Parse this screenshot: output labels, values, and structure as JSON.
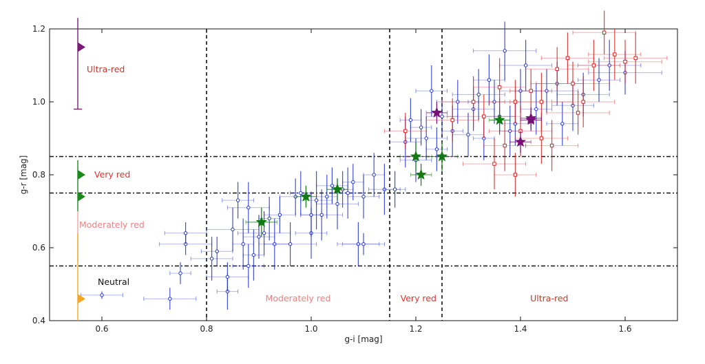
{
  "chart_data": {
    "type": "scatter",
    "xlabel": "g-i [mag]",
    "ylabel": "g-r [mag]",
    "xlim": [
      0.5,
      1.7
    ],
    "ylim": [
      0.4,
      1.2
    ],
    "x_ticks": [
      "0.6",
      "0.8",
      "1.0",
      "1.2",
      "1.4",
      "1.6"
    ],
    "y_ticks": [
      "0.4",
      "0.6",
      "0.8",
      "1.0",
      "1.2"
    ],
    "grid": false,
    "vertical_lines": [
      0.8,
      1.15,
      1.25
    ],
    "horizontal_lines": [
      0.55,
      0.75,
      0.85
    ],
    "colors": {
      "blue_series": "#2233cc",
      "red_series": "#dd2222",
      "green_stars": "#117a11",
      "purple_stars": "#771177",
      "ultra_red_marker": "#7a1a7a",
      "very_red_marker": "#1a8a1a",
      "moderately_red_bar": "#f4a3a3",
      "neutral_marker": "#f5a623"
    },
    "left_scale": [
      {
        "label": "Ultra-red",
        "marker_y": 1.15,
        "bar": [
          0.98,
          1.23
        ],
        "color": "#7a1a7a",
        "label_color": "#c0392b"
      },
      {
        "label": "Very red",
        "marker_y": 0.8,
        "second_marker_y": 0.74,
        "bar": [
          0.7,
          0.84
        ],
        "color": "#1a8a1a",
        "label_color": "#e03030"
      },
      {
        "label": "Moderately red",
        "bar": [
          0.56,
          0.7
        ],
        "color": "#f4a3a3",
        "label_color": "#f08080"
      },
      {
        "label": "Neutral",
        "marker_y": 0.46,
        "bar": [
          0.4,
          0.64
        ],
        "color": "#f5a623",
        "label_color": "#111111"
      }
    ],
    "bottom_labels": [
      {
        "label": "Moderately red",
        "x": 0.975,
        "y": 0.46,
        "color": "#f08080"
      },
      {
        "label": "Very red",
        "x": 1.205,
        "y": 0.46,
        "color": "#e03030"
      },
      {
        "label": "Ultra-red",
        "x": 1.455,
        "y": 0.46,
        "color": "#c0392b"
      }
    ],
    "series": [
      {
        "marker": "circle",
        "color": "#2233cc",
        "points": [
          [
            0.6,
            0.47,
            0.04,
            0.01
          ],
          [
            0.73,
            0.46,
            0.05,
            0.03
          ],
          [
            0.75,
            0.53,
            0.02,
            0.03
          ],
          [
            0.76,
            0.61,
            0.05,
            0.03
          ],
          [
            0.76,
            0.64,
            0.04,
            0.03
          ],
          [
            0.81,
            0.57,
            0.04,
            0.06
          ],
          [
            0.82,
            0.59,
            0.03,
            0.04
          ],
          [
            0.84,
            0.48,
            0.02,
            0.05
          ],
          [
            0.84,
            0.52,
            0.04,
            0.04
          ],
          [
            0.85,
            0.65,
            0.05,
            0.06
          ],
          [
            0.86,
            0.73,
            0.03,
            0.05
          ],
          [
            0.87,
            0.61,
            0.02,
            0.07
          ],
          [
            0.88,
            0.71,
            0.04,
            0.07
          ],
          [
            0.88,
            0.55,
            0.03,
            0.06
          ],
          [
            0.89,
            0.58,
            0.02,
            0.07
          ],
          [
            0.9,
            0.63,
            0.03,
            0.06
          ],
          [
            0.91,
            0.64,
            0.05,
            0.06
          ],
          [
            0.92,
            0.68,
            0.02,
            0.06
          ],
          [
            0.93,
            0.61,
            0.03,
            0.07
          ],
          [
            0.94,
            0.69,
            0.03,
            0.05
          ],
          [
            0.96,
            0.61,
            0.05,
            0.06
          ],
          [
            0.98,
            0.75,
            0.02,
            0.06
          ],
          [
            1.0,
            0.64,
            0.03,
            0.07
          ],
          [
            1.0,
            0.69,
            0.02,
            0.06
          ],
          [
            1.01,
            0.73,
            0.03,
            0.08
          ],
          [
            1.02,
            0.69,
            0.04,
            0.07
          ],
          [
            1.03,
            0.74,
            0.02,
            0.06
          ],
          [
            1.04,
            0.77,
            0.03,
            0.05
          ],
          [
            1.05,
            0.72,
            0.04,
            0.07
          ],
          [
            1.06,
            0.76,
            0.02,
            0.05
          ],
          [
            1.07,
            0.75,
            0.03,
            0.07
          ],
          [
            1.08,
            0.78,
            0.02,
            0.05
          ],
          [
            1.09,
            0.61,
            0.04,
            0.06
          ],
          [
            1.1,
            0.74,
            0.03,
            0.06
          ],
          [
            1.12,
            0.8,
            0.02,
            0.06
          ],
          [
            1.14,
            0.76,
            0.03,
            0.07
          ],
          [
            1.16,
            0.76,
            0.02,
            0.05
          ],
          [
            1.18,
            0.89,
            0.03,
            0.07
          ],
          [
            1.19,
            0.95,
            0.02,
            0.06
          ],
          [
            1.2,
            0.84,
            0.03,
            0.06
          ],
          [
            1.21,
            0.93,
            0.02,
            0.05
          ],
          [
            1.22,
            0.9,
            0.04,
            0.06
          ],
          [
            1.23,
            1.03,
            0.03,
            0.07
          ],
          [
            1.24,
            0.87,
            0.02,
            0.06
          ],
          [
            1.25,
            0.96,
            0.03,
            0.05
          ],
          [
            1.27,
            0.92,
            0.02,
            0.07
          ],
          [
            1.28,
            1.0,
            0.04,
            0.06
          ],
          [
            1.3,
            0.91,
            0.03,
            0.06
          ],
          [
            1.31,
            0.98,
            0.04,
            0.06
          ],
          [
            1.32,
            1.02,
            0.05,
            0.07
          ],
          [
            1.33,
            0.9,
            0.02,
            0.06
          ],
          [
            1.34,
            1.06,
            0.03,
            0.07
          ],
          [
            1.35,
            1.0,
            0.05,
            0.06
          ],
          [
            1.36,
            0.96,
            0.03,
            0.05
          ],
          [
            1.37,
            1.14,
            0.06,
            0.08
          ],
          [
            1.38,
            0.92,
            0.02,
            0.07
          ],
          [
            1.39,
            0.94,
            0.03,
            0.06
          ],
          [
            1.4,
            1.03,
            0.04,
            0.06
          ],
          [
            1.41,
            1.1,
            0.05,
            0.07
          ],
          [
            1.43,
            0.98,
            0.03,
            0.07
          ],
          [
            1.45,
            1.03,
            0.06,
            0.06
          ],
          [
            1.47,
            1.05,
            0.05,
            0.06
          ],
          [
            1.48,
            0.94,
            0.03,
            0.06
          ],
          [
            1.5,
            0.99,
            0.04,
            0.07
          ],
          [
            1.52,
            1.02,
            0.05,
            0.06
          ],
          [
            1.55,
            1.06,
            0.04,
            0.06
          ],
          [
            1.57,
            1.1,
            0.06,
            0.07
          ],
          [
            1.6,
            1.08,
            0.07,
            0.06
          ],
          [
            1.1,
            0.61,
            0.04,
            0.03
          ],
          [
            0.97,
            0.74,
            0.03,
            0.05
          ]
        ]
      },
      {
        "marker": "square",
        "color": "#dd2222",
        "points": [
          [
            1.18,
            0.92,
            0.04,
            0.05
          ],
          [
            1.27,
            0.95,
            0.05,
            0.06
          ],
          [
            1.31,
            1.0,
            0.06,
            0.07
          ],
          [
            1.33,
            0.96,
            0.07,
            0.06
          ],
          [
            1.36,
            1.04,
            0.05,
            0.08
          ],
          [
            1.37,
            0.88,
            0.04,
            0.07
          ],
          [
            1.39,
            1.0,
            0.05,
            0.06
          ],
          [
            1.4,
            0.92,
            0.06,
            0.07
          ],
          [
            1.42,
            1.03,
            0.04,
            0.06
          ],
          [
            1.44,
            1.0,
            0.06,
            0.08
          ],
          [
            1.46,
            0.88,
            0.05,
            0.07
          ],
          [
            1.47,
            1.09,
            0.06,
            0.06
          ],
          [
            1.49,
            1.12,
            0.05,
            0.07
          ],
          [
            1.5,
            1.05,
            0.07,
            0.06
          ],
          [
            1.52,
            1.0,
            0.06,
            0.07
          ],
          [
            1.54,
            1.1,
            0.05,
            0.07
          ],
          [
            1.56,
            1.19,
            0.06,
            0.06
          ],
          [
            1.58,
            1.13,
            0.05,
            0.07
          ],
          [
            1.6,
            1.11,
            0.07,
            0.06
          ],
          [
            1.62,
            1.12,
            0.06,
            0.07
          ],
          [
            1.39,
            0.8,
            0.04,
            0.06
          ],
          [
            1.35,
            0.83,
            0.06,
            0.07
          ],
          [
            1.44,
            0.9,
            0.05,
            0.07
          ],
          [
            1.51,
            0.97,
            0.06,
            0.06
          ]
        ]
      },
      {
        "marker": "star",
        "color": "#117a11",
        "points": [
          [
            0.905,
            0.67,
            0.03,
            0.04
          ],
          [
            0.99,
            0.74,
            0.02,
            0.03
          ],
          [
            1.05,
            0.76,
            0.02,
            0.03
          ],
          [
            1.2,
            0.85,
            0.03,
            0.04
          ],
          [
            1.21,
            0.8,
            0.02,
            0.03
          ],
          [
            1.25,
            0.85,
            0.03,
            0.04
          ],
          [
            1.36,
            0.95,
            0.02,
            0.03
          ]
        ]
      },
      {
        "marker": "star",
        "color": "#771177",
        "points": [
          [
            1.24,
            0.97,
            0.02,
            0.03
          ],
          [
            1.4,
            0.89,
            0.02,
            0.03
          ],
          [
            1.42,
            0.95,
            0.02,
            0.03
          ],
          [
            1.42,
            0.955,
            0.02,
            0.03
          ]
        ]
      }
    ]
  }
}
